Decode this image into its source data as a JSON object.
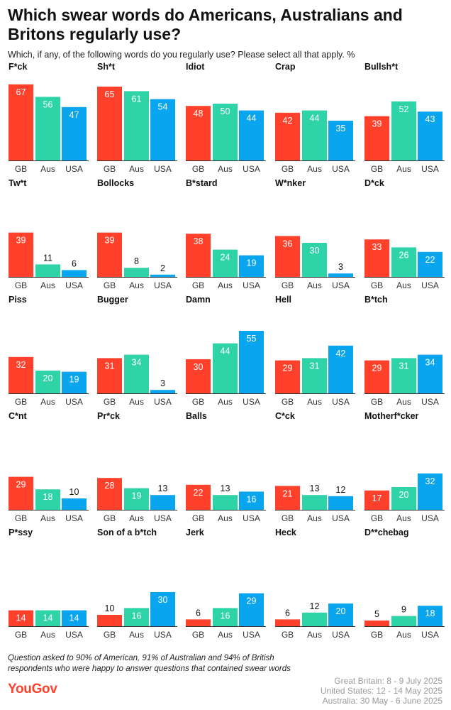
{
  "header": {
    "title": "Which swear words do Americans, Australians and Britons regularly use?",
    "subtitle": "Which, if any, of the following words do you regularly use? Please select all that apply. %"
  },
  "colors": {
    "GB": "#ff412c",
    "Aus": "#2fd3a8",
    "USA": "#0aa5ef",
    "axis": "#333333"
  },
  "chart_data": {
    "type": "bar",
    "grouping": "small-multiples",
    "categories": [
      "GB",
      "Aus",
      "USA"
    ],
    "ylim": [
      0,
      70
    ],
    "panels": [
      {
        "title": "F*ck",
        "values": [
          67,
          56,
          47
        ]
      },
      {
        "title": "Sh*t",
        "values": [
          65,
          61,
          54
        ]
      },
      {
        "title": "Idiot",
        "values": [
          48,
          50,
          44
        ]
      },
      {
        "title": "Crap",
        "values": [
          42,
          44,
          35
        ]
      },
      {
        "title": "Bullsh*t",
        "values": [
          39,
          52,
          43
        ]
      },
      {
        "title": "Tw*t",
        "values": [
          39,
          11,
          6
        ]
      },
      {
        "title": "Bollocks",
        "values": [
          39,
          8,
          2
        ]
      },
      {
        "title": "B*stard",
        "values": [
          38,
          24,
          19
        ]
      },
      {
        "title": "W*nker",
        "values": [
          36,
          30,
          3
        ]
      },
      {
        "title": "D*ck",
        "values": [
          33,
          26,
          22
        ]
      },
      {
        "title": "Piss",
        "values": [
          32,
          20,
          19
        ]
      },
      {
        "title": "Bugger",
        "values": [
          31,
          34,
          3
        ]
      },
      {
        "title": "Damn",
        "values": [
          30,
          44,
          55
        ]
      },
      {
        "title": "Hell",
        "values": [
          29,
          31,
          42
        ]
      },
      {
        "title": "B*tch",
        "values": [
          29,
          31,
          34
        ]
      },
      {
        "title": "C*nt",
        "values": [
          29,
          18,
          10
        ]
      },
      {
        "title": "Pr*ck",
        "values": [
          28,
          19,
          13
        ]
      },
      {
        "title": "Balls",
        "values": [
          22,
          13,
          16
        ]
      },
      {
        "title": "C*ck",
        "values": [
          21,
          13,
          12
        ]
      },
      {
        "title": "Motherf*cker",
        "values": [
          17,
          20,
          32
        ]
      },
      {
        "title": "P*ssy",
        "values": [
          14,
          14,
          14
        ]
      },
      {
        "title": "Son of a b*tch",
        "values": [
          10,
          16,
          30
        ]
      },
      {
        "title": "Jerk",
        "values": [
          6,
          16,
          29
        ]
      },
      {
        "title": "Heck",
        "values": [
          6,
          12,
          20
        ]
      },
      {
        "title": "D**chebag",
        "values": [
          5,
          9,
          18
        ]
      }
    ]
  },
  "footer": {
    "note": "Question asked to 90% of American, 91% of Australian and 94% of British respondents who were happy to answer questions that contained swear words",
    "logo": "YouGov",
    "dates": [
      "Great Britain: 8 - 9 July 2025",
      "United States: 12 - 14 May 2025",
      "Australia: 30 May - 6 June 2025"
    ]
  }
}
